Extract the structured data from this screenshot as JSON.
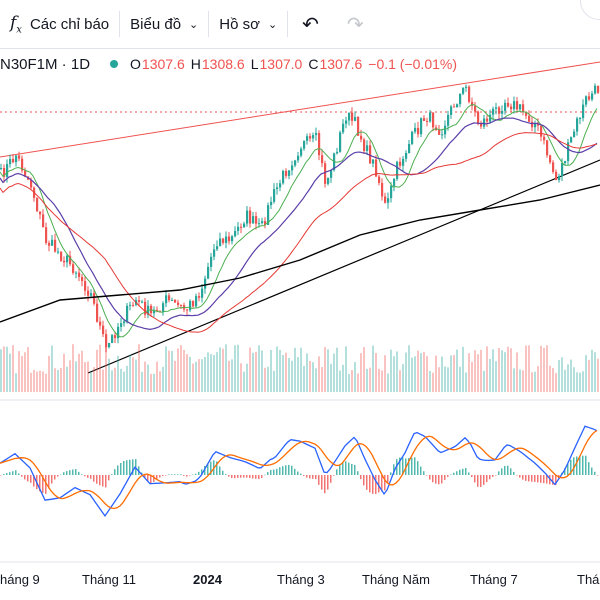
{
  "toolbar": {
    "indicators_label": "Các chỉ báo",
    "chart_type_label": "Biểu đồ",
    "profile_label": "Hồ sơ"
  },
  "legend": {
    "symbol": "N30F1M · 1D",
    "open_label": "O",
    "open": "1307.6",
    "high_label": "H",
    "high": "1308.6",
    "low_label": "L",
    "low": "1307.0",
    "close_label": "C",
    "close": "1307.6",
    "change": "−0.1 (−0.01%)"
  },
  "axis": {
    "ticks": [
      "háng 9",
      "Tháng 11",
      "2024",
      "Tháng 3",
      "Tháng Năm",
      "Tháng 7",
      "Thá"
    ]
  },
  "colors": {
    "up": "#26a69a",
    "down": "#ef5350",
    "ma_fast": "#4caf50",
    "ma_mid": "#5b3fa8",
    "ma_slow": "#e53935",
    "ma_long": "#000000",
    "macd": "#2962ff",
    "signal": "#ff6d00"
  },
  "icons": {
    "undo": "undo-arrow-icon",
    "redo": "redo-arrow-icon",
    "indicators": "fx-icon"
  }
}
